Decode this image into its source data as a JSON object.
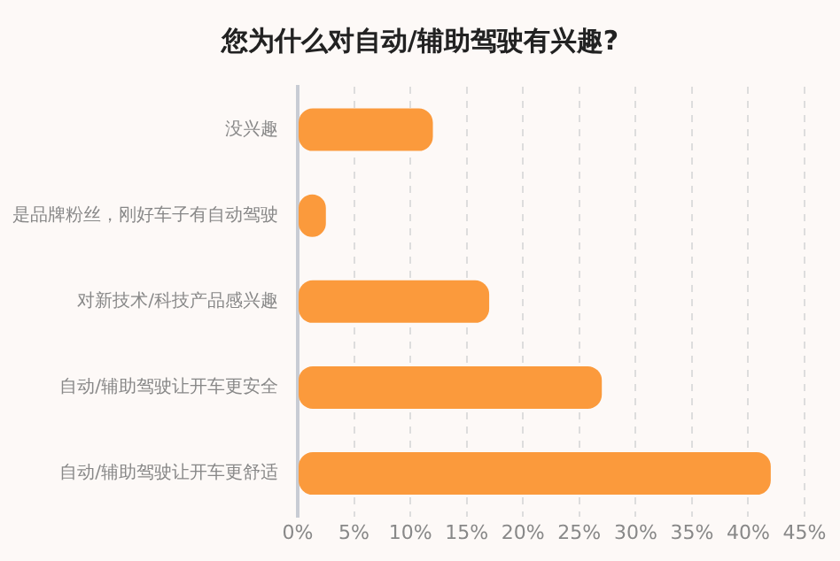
{
  "chart_data": {
    "type": "bar",
    "orientation": "horizontal",
    "title": "您为什么对自动/辅助驾驶有兴趣?",
    "categories": [
      "没兴趣",
      "是品牌粉丝，刚好车子有自动驾驶",
      "对新技术/科技产品感兴趣",
      "自动/辅助驾驶让开车更安全",
      "自动/辅助驾驶让开车更舒适"
    ],
    "values": [
      12,
      2.5,
      17,
      27,
      42
    ],
    "color": "#fb9a3c",
    "xlim": [
      0,
      45
    ],
    "xticks": [
      {
        "value": 0,
        "label": "0%"
      },
      {
        "value": 5,
        "label": "5%"
      },
      {
        "value": 10,
        "label": "10%"
      },
      {
        "value": 15,
        "label": "15%"
      },
      {
        "value": 20,
        "label": "20%"
      },
      {
        "value": 25,
        "label": "25%"
      },
      {
        "value": 30,
        "label": "30%"
      },
      {
        "value": 35,
        "label": "35%"
      },
      {
        "value": 40,
        "label": "40%"
      },
      {
        "value": 45,
        "label": "45%"
      }
    ],
    "grid": "x",
    "legend": false
  }
}
